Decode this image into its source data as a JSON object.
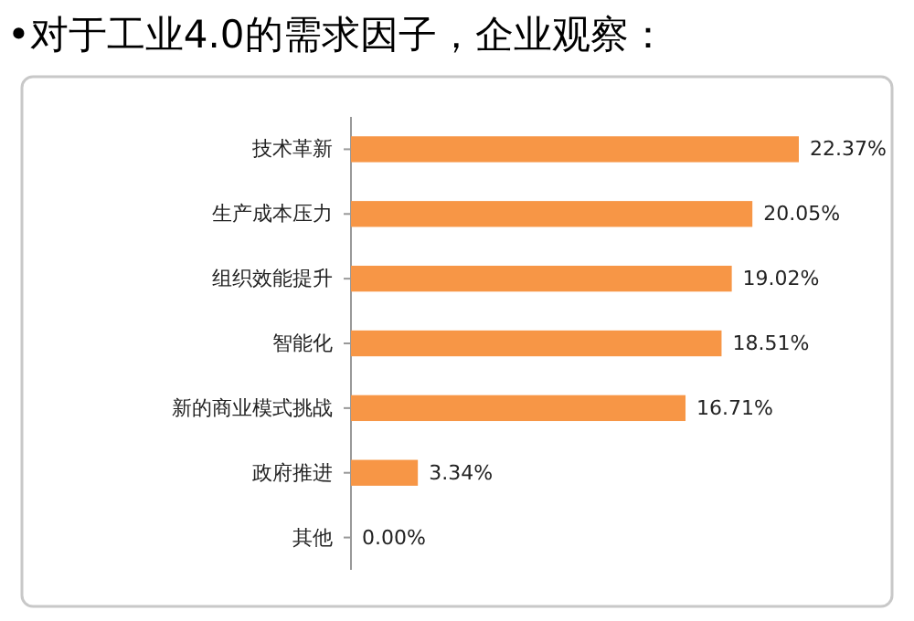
{
  "chart_data": {
    "type": "bar",
    "orientation": "horizontal",
    "title": "•对于工业4.0的需求因子，企业观察：",
    "categories": [
      "技术革新",
      "生产成本压力",
      "组织效能提升",
      "智能化",
      "新的商业模式挑战",
      "政府推进",
      "其他"
    ],
    "values": [
      22.37,
      20.05,
      19.02,
      18.51,
      16.71,
      3.34,
      0
    ],
    "value_labels": [
      "22.37%",
      "20.05%",
      "19.02%",
      "18.51%",
      "16.71%",
      "3.34%",
      "0.00%"
    ],
    "color": "#f79646"
  }
}
